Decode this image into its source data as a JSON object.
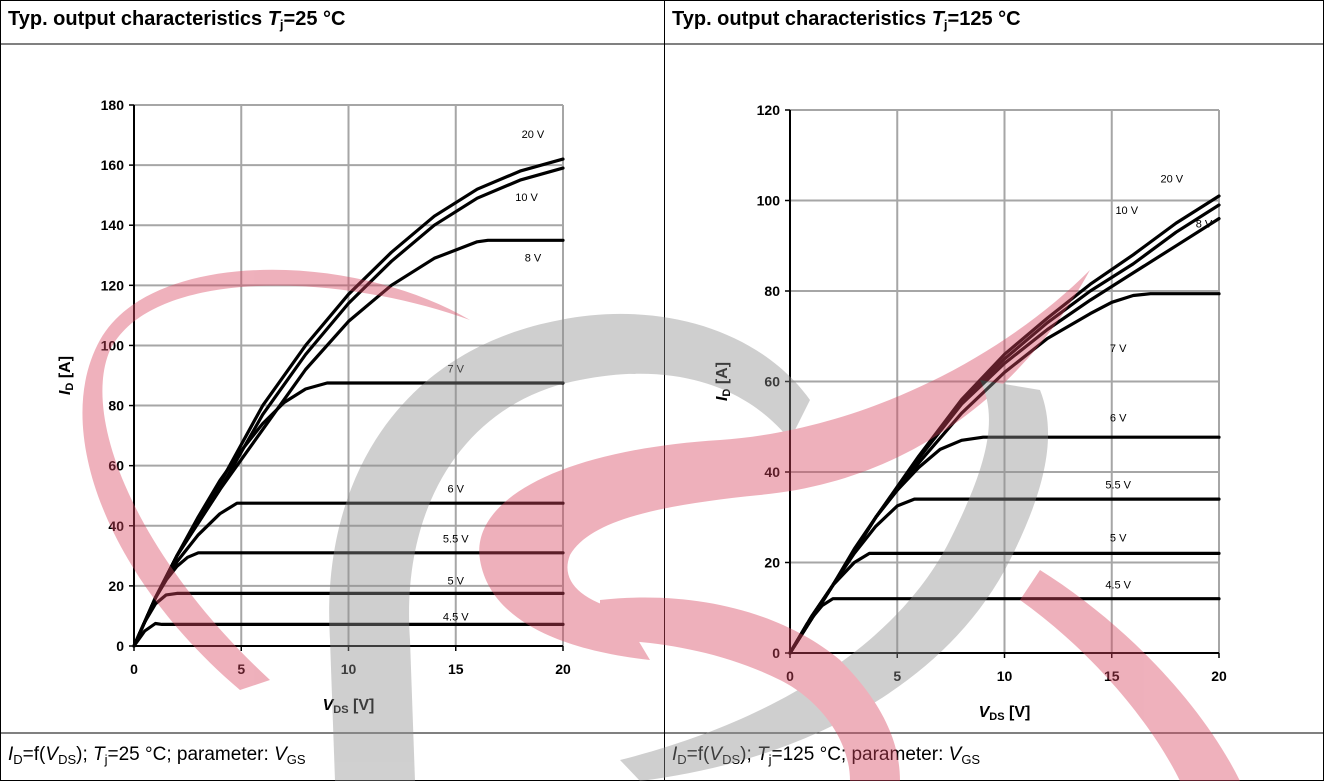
{
  "panels": [
    {
      "title": {
        "prefix": "Typ. output characteristics ",
        "var": "T",
        "sub": "j",
        "suffix": "=25 °C"
      },
      "caption": {
        "i_var": "I",
        "i_sub": "D",
        "mid1": "=f(",
        "v_var": "V",
        "v_sub": "DS",
        "mid2": "); ",
        "t_var": "T",
        "t_sub": "j",
        "mid3": "=25 °C; parameter: ",
        "g_var": "V",
        "g_sub": "GS"
      }
    },
    {
      "title": {
        "prefix": "Typ. output characteristics ",
        "var": "T",
        "sub": "j",
        "suffix": "=125 °C"
      },
      "caption": {
        "i_var": "I",
        "i_sub": "D",
        "mid1": "=f(",
        "v_var": "V",
        "v_sub": "DS",
        "mid2": "); ",
        "t_var": "T",
        "t_sub": "j",
        "mid3": "=125 °C; parameter: ",
        "g_var": "V",
        "g_sub": "GS"
      }
    }
  ],
  "colors": {
    "curve": "#000000",
    "grid": "#a6a6a6",
    "watermark_red": "#d9455f",
    "watermark_gray": "#9a9a9a"
  },
  "chart_data": [
    {
      "type": "line",
      "xlabel": {
        "var": "V",
        "sub": "DS",
        "unit": " [V]"
      },
      "ylabel": {
        "var": "I",
        "sub": "D",
        "unit": " [A]"
      },
      "xlim": [
        0,
        20
      ],
      "ylim": [
        0,
        180
      ],
      "xticks": [
        0,
        5,
        10,
        15,
        20
      ],
      "yticks": [
        0,
        20,
        40,
        60,
        80,
        100,
        120,
        140,
        160,
        180
      ],
      "grid": true,
      "series": [
        {
          "name": "4.5 V",
          "label_at": [
            15,
            8.5
          ],
          "x": [
            0,
            0.5,
            1.0,
            1.3,
            2,
            20
          ],
          "y": [
            0,
            5,
            7.5,
            7.2,
            7.2,
            7.2
          ]
        },
        {
          "name": "5 V",
          "label_at": [
            15,
            20.5
          ],
          "x": [
            0,
            0.5,
            1.0,
            1.5,
            2.0,
            20
          ],
          "y": [
            0,
            8,
            14,
            17,
            17.5,
            17.5
          ]
        },
        {
          "name": "5.5 V",
          "label_at": [
            15,
            34.5
          ],
          "x": [
            0,
            0.5,
            1.0,
            1.5,
            2.0,
            2.5,
            3.0,
            20
          ],
          "y": [
            0,
            8,
            16,
            22,
            26.5,
            29.5,
            31,
            31
          ]
        },
        {
          "name": "6 V",
          "label_at": [
            15,
            51
          ],
          "x": [
            0,
            1,
            2,
            3,
            4,
            4.8,
            20
          ],
          "y": [
            0,
            16,
            28,
            37,
            44,
            47.5,
            47.5
          ]
        },
        {
          "name": "7 V",
          "label_at": [
            15,
            91
          ],
          "x": [
            0,
            1,
            2,
            3,
            4,
            5,
            6,
            7,
            8,
            9,
            20
          ],
          "y": [
            0,
            16,
            30,
            43,
            55,
            65,
            74,
            81,
            85.5,
            87.5,
            87.5
          ]
        },
        {
          "name": "8 V",
          "label_at": [
            18.6,
            128
          ],
          "x": [
            0,
            1,
            2,
            4,
            6,
            8,
            10,
            12,
            14,
            16,
            16.5,
            20
          ],
          "y": [
            0,
            16,
            30,
            52,
            72,
            92,
            108,
            120,
            129,
            134.5,
            135,
            135
          ]
        },
        {
          "name": "10 V",
          "label_at": [
            18.3,
            148
          ],
          "x": [
            0,
            1,
            2,
            4,
            6,
            8,
            10,
            12,
            14,
            16,
            18,
            20
          ],
          "y": [
            0,
            16,
            30,
            52,
            77,
            97,
            114,
            128,
            140,
            149,
            155,
            159
          ]
        },
        {
          "name": "20 V",
          "label_at": [
            18.6,
            169
          ],
          "x": [
            0,
            1,
            2,
            4,
            6,
            8,
            10,
            12,
            14,
            16,
            18,
            20
          ],
          "y": [
            0,
            16,
            30,
            54,
            80,
            100,
            117,
            131,
            143,
            152,
            158,
            162
          ]
        }
      ]
    },
    {
      "type": "line",
      "xlabel": {
        "var": "V",
        "sub": "DS",
        "unit": " [V]"
      },
      "ylabel": {
        "var": "I",
        "sub": "D",
        "unit": " [A]"
      },
      "xlim": [
        0,
        20
      ],
      "ylim": [
        0,
        120
      ],
      "xticks": [
        0,
        5,
        10,
        15,
        20
      ],
      "yticks": [
        0,
        20,
        40,
        60,
        80,
        100,
        120
      ],
      "grid": true,
      "series": [
        {
          "name": "4.5 V",
          "label_at": [
            15.3,
            14.2
          ],
          "x": [
            0,
            0.8,
            1.5,
            2.0,
            20
          ],
          "y": [
            0,
            6.5,
            10.5,
            12,
            12
          ]
        },
        {
          "name": "5 V",
          "label_at": [
            15.3,
            24.6
          ],
          "x": [
            0,
            1,
            2,
            3,
            3.7,
            20
          ],
          "y": [
            0,
            8,
            15,
            20,
            22,
            22
          ]
        },
        {
          "name": "5.5 V",
          "label_at": [
            15.3,
            36.3
          ],
          "x": [
            0,
            1,
            2,
            3,
            4,
            5,
            5.8,
            20
          ],
          "y": [
            0,
            8,
            15,
            22,
            28,
            32.5,
            34,
            34
          ]
        },
        {
          "name": "6 V",
          "label_at": [
            15.3,
            51.2
          ],
          "x": [
            0,
            1,
            2,
            3,
            4,
            5,
            6,
            7,
            8,
            9,
            20
          ],
          "y": [
            0,
            8,
            15,
            23,
            30,
            36,
            41,
            45,
            47,
            47.7,
            47.7
          ]
        },
        {
          "name": "7 V",
          "label_at": [
            15.3,
            66.5
          ],
          "x": [
            0,
            2,
            4,
            6,
            8,
            10,
            12,
            14,
            15,
            16,
            16.8,
            20
          ],
          "y": [
            0,
            15,
            30,
            42,
            53,
            62,
            69.5,
            75,
            77.5,
            79,
            79.4,
            79.4
          ]
        },
        {
          "name": "8 V",
          "label_at": [
            19.3,
            94
          ],
          "x": [
            0,
            2,
            4,
            6,
            8,
            10,
            12,
            14,
            16,
            18,
            20
          ],
          "y": [
            0,
            15,
            30,
            43,
            55,
            64,
            71.5,
            78,
            84,
            90,
            96
          ]
        },
        {
          "name": "10 V",
          "label_at": [
            15.7,
            97
          ],
          "x": [
            0,
            2,
            4,
            6,
            8,
            10,
            12,
            14,
            16,
            18,
            20
          ],
          "y": [
            0,
            15,
            30,
            43,
            55.5,
            65,
            73,
            80,
            86,
            93,
            99
          ]
        },
        {
          "name": "20 V",
          "label_at": [
            17.8,
            104
          ],
          "x": [
            0,
            2,
            4,
            6,
            8,
            10,
            12,
            14,
            16,
            18,
            20
          ],
          "y": [
            0,
            15,
            30,
            43.5,
            56,
            66,
            74,
            81.5,
            88,
            95,
            101
          ]
        }
      ]
    }
  ]
}
